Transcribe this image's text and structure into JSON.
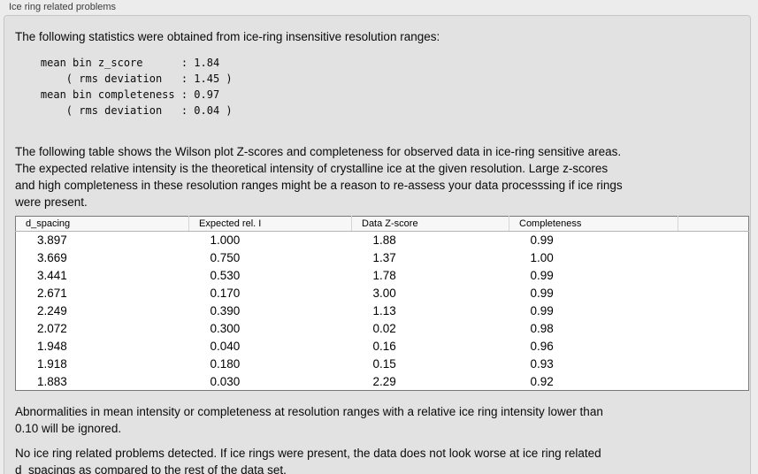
{
  "panel": {
    "title": "Ice ring related problems"
  },
  "intro": "The following statistics were obtained from ice-ring insensitive resolution ranges:",
  "stats": {
    "block_text": "    mean bin z_score      : 1.84\n        ( rms deviation   : 1.45 )\n    mean bin completeness : 0.97\n        ( rms deviation   : 0.04 )",
    "mean_bin_z_score": "1.84",
    "z_score_rms_deviation": "1.45",
    "mean_bin_completeness": "0.97",
    "completeness_rms_deviation": "0.04"
  },
  "description": "The following table shows the Wilson plot Z-scores and completeness for observed data in ice-ring sensitive areas.\nThe expected relative intensity is the theoretical intensity of crystalline ice at the given resolution. Large z-scores\nand high completeness in these resolution ranges might be a reason to re-assess your data processsing if ice rings\nwere present.",
  "table": {
    "columns": [
      "d_spacing",
      "Expected rel. I",
      "Data Z-score",
      "Completeness"
    ],
    "rows": [
      [
        "3.897",
        "1.000",
        "1.88",
        "0.99"
      ],
      [
        "3.669",
        "0.750",
        "1.37",
        "1.00"
      ],
      [
        "3.441",
        "0.530",
        "1.78",
        "0.99"
      ],
      [
        "2.671",
        "0.170",
        "3.00",
        "0.99"
      ],
      [
        "2.249",
        "0.390",
        "1.13",
        "0.99"
      ],
      [
        "2.072",
        "0.300",
        "0.02",
        "0.98"
      ],
      [
        "1.948",
        "0.040",
        "0.16",
        "0.96"
      ],
      [
        "1.918",
        "0.180",
        "0.15",
        "0.93"
      ],
      [
        "1.883",
        "0.030",
        "2.29",
        "0.92"
      ]
    ]
  },
  "notes": {
    "ignore_threshold": "Abnormalities in mean intensity or completeness at resolution ranges with a relative ice ring intensity lower than\n0.10 will be ignored.",
    "conclusion": "No ice ring related problems detected. If ice rings were present, the data does not look worse at ice ring related\nd_spacings as compared to the rest of the data set."
  },
  "colors": {
    "page_bg": "#ececec",
    "panel_bg": "#e2e2e2",
    "panel_border": "#c6c6c6",
    "table_border": "#787878",
    "table_header_bg": "#f7f7f7",
    "text": "#0a0a0a"
  }
}
